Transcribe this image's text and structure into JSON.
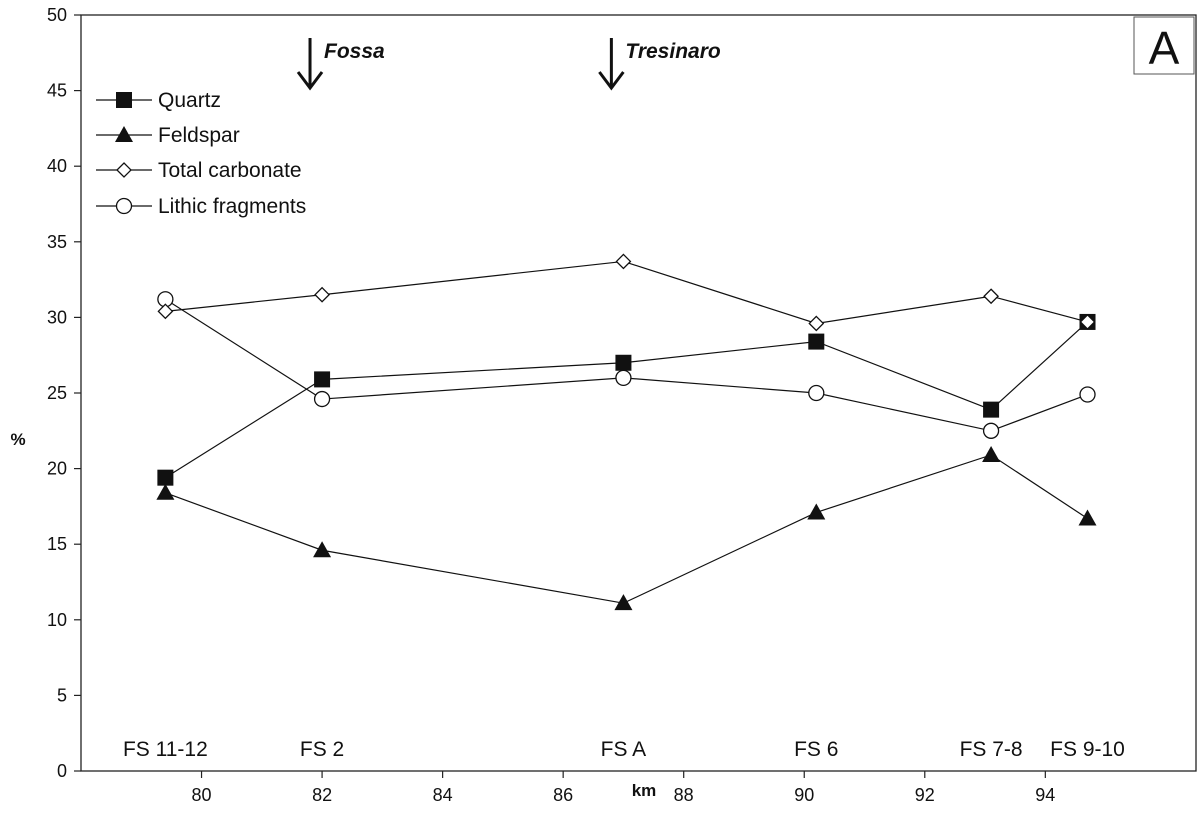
{
  "chart_data": {
    "type": "line",
    "xlabel": "km",
    "ylabel": "%",
    "xlim": [
      78,
      96.5
    ],
    "ylim": [
      0,
      50
    ],
    "x_ticks": [
      80,
      82,
      84,
      86,
      88,
      90,
      92,
      94
    ],
    "y_ticks": [
      0,
      5,
      10,
      15,
      20,
      25,
      30,
      35,
      40,
      45,
      50
    ],
    "grid": false,
    "legend_position": "top-left",
    "panel_label": "A",
    "sites": [
      {
        "label": "FS 11-12",
        "x": 79.4
      },
      {
        "label": "FS 2",
        "x": 82.0
      },
      {
        "label": "FS A",
        "x": 87.0
      },
      {
        "label": "FS 6",
        "x": 90.2
      },
      {
        "label": "FS 7-8",
        "x": 93.1
      },
      {
        "label": "FS 9-10",
        "x": 94.7
      }
    ],
    "rivers": [
      {
        "name": "Fossa",
        "x": 81.8
      },
      {
        "name": "Tresinaro",
        "x": 86.8
      }
    ],
    "series": [
      {
        "name": "Quartz",
        "marker": "filled-square",
        "x": [
          79.4,
          82.0,
          87.0,
          90.2,
          93.1,
          94.7
        ],
        "y": [
          19.4,
          25.9,
          27.0,
          28.4,
          23.9,
          29.7
        ]
      },
      {
        "name": "Feldspar",
        "marker": "filled-triangle",
        "x": [
          79.4,
          82.0,
          87.0,
          90.2,
          93.1,
          94.7
        ],
        "y": [
          18.4,
          14.6,
          11.1,
          17.1,
          20.9,
          16.7
        ]
      },
      {
        "name": "Total carbonate",
        "marker": "open-diamond",
        "x": [
          79.4,
          82.0,
          87.0,
          90.2,
          93.1,
          94.7
        ],
        "y": [
          30.4,
          31.5,
          33.7,
          29.6,
          31.4,
          29.7
        ]
      },
      {
        "name": "Lithic fragments",
        "marker": "open-circle",
        "x": [
          79.4,
          82.0,
          87.0,
          90.2,
          93.1,
          94.7
        ],
        "y": [
          31.2,
          24.6,
          26.0,
          25.0,
          22.5,
          24.9
        ]
      }
    ]
  }
}
